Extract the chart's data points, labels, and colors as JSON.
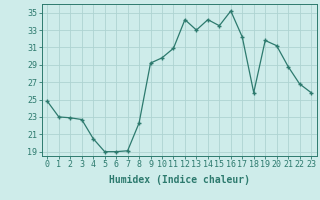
{
  "x": [
    0,
    1,
    2,
    3,
    4,
    5,
    6,
    7,
    8,
    9,
    10,
    11,
    12,
    13,
    14,
    15,
    16,
    17,
    18,
    19,
    20,
    21,
    22,
    23
  ],
  "y": [
    24.8,
    23.0,
    22.9,
    22.7,
    20.5,
    19.0,
    19.0,
    19.1,
    22.3,
    29.2,
    29.8,
    30.9,
    34.2,
    33.0,
    34.2,
    33.5,
    35.2,
    32.2,
    25.8,
    31.8,
    31.2,
    28.8,
    26.8,
    25.8
  ],
  "xlim": [
    -0.5,
    23.5
  ],
  "ylim": [
    18.5,
    36.0
  ],
  "yticks": [
    19,
    21,
    23,
    25,
    27,
    29,
    31,
    33,
    35
  ],
  "xticks": [
    0,
    1,
    2,
    3,
    4,
    5,
    6,
    7,
    8,
    9,
    10,
    11,
    12,
    13,
    14,
    15,
    16,
    17,
    18,
    19,
    20,
    21,
    22,
    23
  ],
  "xlabel": "Humidex (Indice chaleur)",
  "line_color": "#2d7a6e",
  "marker": "+",
  "marker_size": 3,
  "background_color": "#ceecea",
  "grid_color": "#aed4d2",
  "tick_label_color": "#2d7a6e",
  "axis_color": "#2d7a6e",
  "xlabel_fontsize": 7,
  "tick_fontsize": 6
}
